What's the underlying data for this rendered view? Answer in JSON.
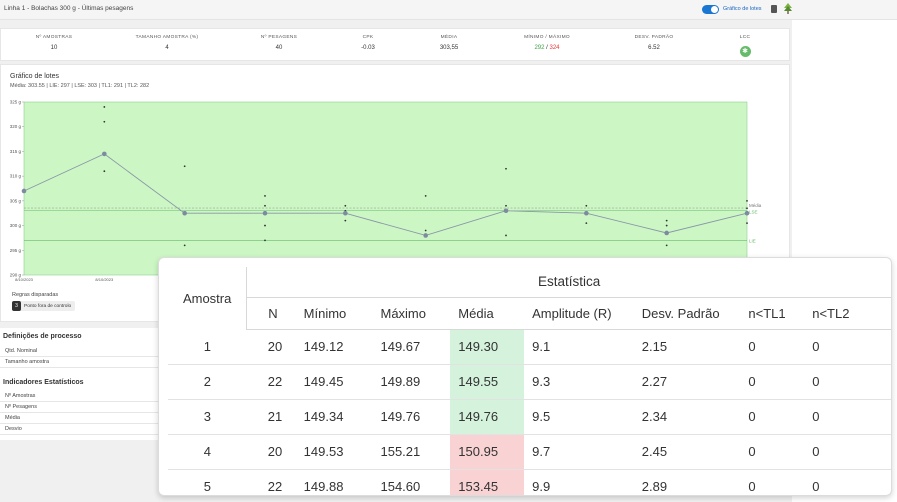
{
  "header": {
    "title": "Linha 1 - Bolachas 300 g - Últimas pesagens",
    "toggle_label": "Gráfico de lotes",
    "toggle_on": true,
    "icons": [
      "document-icon",
      "tree-icon"
    ]
  },
  "stats": [
    {
      "label": "Nº AMOSTRAS",
      "value": "10"
    },
    {
      "label": "TAMANHO AMOSTRA (%)",
      "value": "4"
    },
    {
      "label": "Nº PESAGENS",
      "value": "40"
    },
    {
      "label": "CPK",
      "value": "-0.03"
    },
    {
      "label": "MÉDIA",
      "value": "303,55"
    },
    {
      "label": "MÍNIMO / MÁXIMO",
      "value_min": "292",
      "value_sep": " / ",
      "value_max": "324"
    },
    {
      "label": "DESV. PADRÃO",
      "value": "6.52"
    },
    {
      "label": "LCC",
      "icon": "lcc-status-icon"
    }
  ],
  "colors": {
    "accent": "#1976d2",
    "chart_band": "#ccf7c4",
    "line": "#8a96a8",
    "good_cell": "#d4f2dc",
    "bad_cell": "#f9d3d3"
  },
  "chart": {
    "title": "Gráfico de lotes",
    "subtitle": "Média: 303.55 | LIE: 297 | LSE: 303 | TL1: 291 | TL2: 282",
    "y_ticks": [
      "325 g",
      "320 g",
      "315 g",
      "310 g",
      "305 g",
      "300 g",
      "295 g",
      "290 g"
    ],
    "x_ticks": [
      "8/10/2023",
      "8/10/2023"
    ],
    "line_labels": {
      "media": "Média",
      "lse": "LSE",
      "lie": "LIE"
    }
  },
  "chart_data": {
    "type": "line",
    "title": "Gráfico de lotes",
    "ylim": [
      290,
      325
    ],
    "series": [
      {
        "values": [
          307,
          314.5,
          302.5,
          302.5,
          302.5,
          298,
          303,
          302.5,
          298.5,
          302.5
        ]
      }
    ],
    "scatter_points": [
      {
        "sample": 2,
        "y": [
          324,
          321,
          311
        ]
      },
      {
        "sample": 3,
        "y": [
          312,
          296
        ]
      },
      {
        "sample": 4,
        "y": [
          306,
          304,
          300,
          297
        ]
      },
      {
        "sample": 5,
        "y": [
          304,
          303,
          301
        ]
      },
      {
        "sample": 6,
        "y": [
          306,
          299
        ]
      },
      {
        "sample": 7,
        "y": [
          311.5,
          304,
          298
        ]
      },
      {
        "sample": 8,
        "y": [
          304,
          300.5
        ]
      },
      {
        "sample": 9,
        "y": [
          301,
          300,
          296
        ]
      },
      {
        "sample": 10,
        "y": [
          305,
          303.5,
          300.5
        ]
      }
    ],
    "reference_lines": {
      "media": 303.55,
      "lse": 303,
      "lie": 297
    },
    "grid": false
  },
  "rules": {
    "title": "Regras disparadas",
    "items": [
      {
        "num": "3",
        "text": "Ponto fora de controlo"
      }
    ]
  },
  "process_definitions": {
    "title": "Definições de processo",
    "rows": [
      "Qtd. Nominal",
      "Tamanho amostra"
    ]
  },
  "stat_indicators": {
    "title": "Indicadores Estatísticos",
    "rows": [
      "Nº Amostras",
      "Nº Pesagens",
      "Média",
      "Desvio"
    ]
  },
  "table": {
    "amostra_header": "Amostra",
    "group_header": "Estatística",
    "columns": [
      "N",
      "Mínimo",
      "Máximo",
      "Média",
      "Amplitude (R)",
      "Desv. Padrão",
      "n<TL1",
      "n<TL2"
    ],
    "rows": [
      {
        "amostra": "1",
        "n": "20",
        "min": "149.12",
        "max": "149.67",
        "media": "149.30",
        "amp": "9.1",
        "dp": "2.15",
        "tl1": "0",
        "tl2": "0",
        "status": "good"
      },
      {
        "amostra": "2",
        "n": "22",
        "min": "149.45",
        "max": "149.89",
        "media": "149.55",
        "amp": "9.3",
        "dp": "2.27",
        "tl1": "0",
        "tl2": "0",
        "status": "good"
      },
      {
        "amostra": "3",
        "n": "21",
        "min": "149.34",
        "max": "149.76",
        "media": "149.76",
        "amp": "9.5",
        "dp": "2.34",
        "tl1": "0",
        "tl2": "0",
        "status": "good"
      },
      {
        "amostra": "4",
        "n": "20",
        "min": "149.53",
        "max": "155.21",
        "media": "150.95",
        "amp": "9.7",
        "dp": "2.45",
        "tl1": "0",
        "tl2": "0",
        "status": "bad"
      },
      {
        "amostra": "5",
        "n": "22",
        "min": "149.88",
        "max": "154.60",
        "media": "153.45",
        "amp": "9.9",
        "dp": "2.89",
        "tl1": "0",
        "tl2": "0",
        "status": "bad"
      }
    ]
  }
}
